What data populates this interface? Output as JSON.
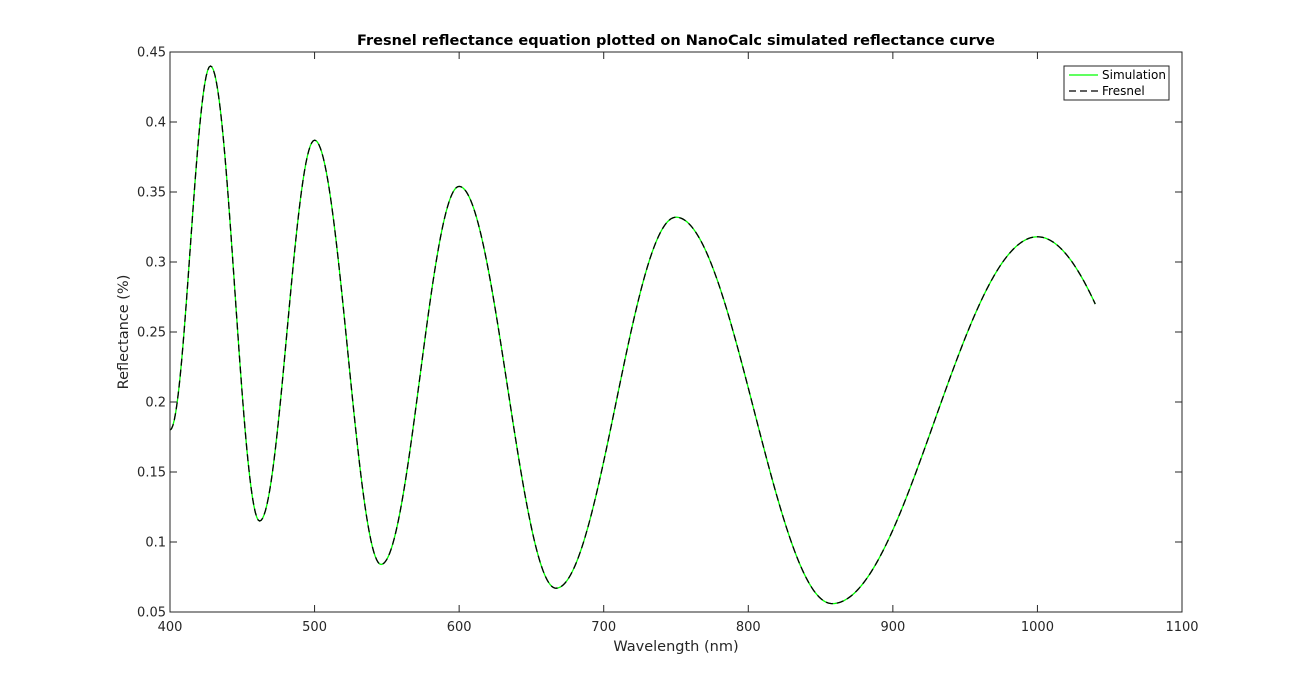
{
  "chart_data": {
    "type": "line",
    "title": "Fresnel reflectance equation plotted on NanoCalc simulated reflectance curve",
    "xlabel": "Wavelength (nm)",
    "ylabel": "Reflectance (%)",
    "xlim": [
      400,
      1100
    ],
    "ylim": [
      0.05,
      0.45
    ],
    "xticks": [
      400,
      500,
      600,
      700,
      800,
      900,
      1000,
      1100
    ],
    "xtick_labels": [
      "400",
      "500",
      "600",
      "700",
      "800",
      "900",
      "1000",
      "1100"
    ],
    "yticks": [
      0.05,
      0.1,
      0.15,
      0.2,
      0.25,
      0.3,
      0.35,
      0.4,
      0.45
    ],
    "ytick_labels": [
      "0.05",
      "0.1",
      "0.15",
      "0.2",
      "0.25",
      "0.3",
      "0.35",
      "0.4",
      "0.45"
    ],
    "grid": false,
    "legend_position": "top-right",
    "legend": [
      "Simulation",
      "Fresnel"
    ],
    "extrema": [
      {
        "x": 400,
        "y": 0.18
      },
      {
        "x": 428,
        "y": 0.44
      },
      {
        "x": 462,
        "y": 0.115
      },
      {
        "x": 500,
        "y": 0.387
      },
      {
        "x": 546,
        "y": 0.084
      },
      {
        "x": 600,
        "y": 0.354
      },
      {
        "x": 667,
        "y": 0.067
      },
      {
        "x": 750,
        "y": 0.332
      },
      {
        "x": 858,
        "y": 0.056
      },
      {
        "x": 1000,
        "y": 0.318
      }
    ],
    "end_point": {
      "x": 1040,
      "y": 0.291
    },
    "series": [
      {
        "name": "Simulation",
        "color": "#00ff00",
        "style": "solid"
      },
      {
        "name": "Fresnel",
        "color": "#000000",
        "style": "dashed"
      }
    ]
  }
}
